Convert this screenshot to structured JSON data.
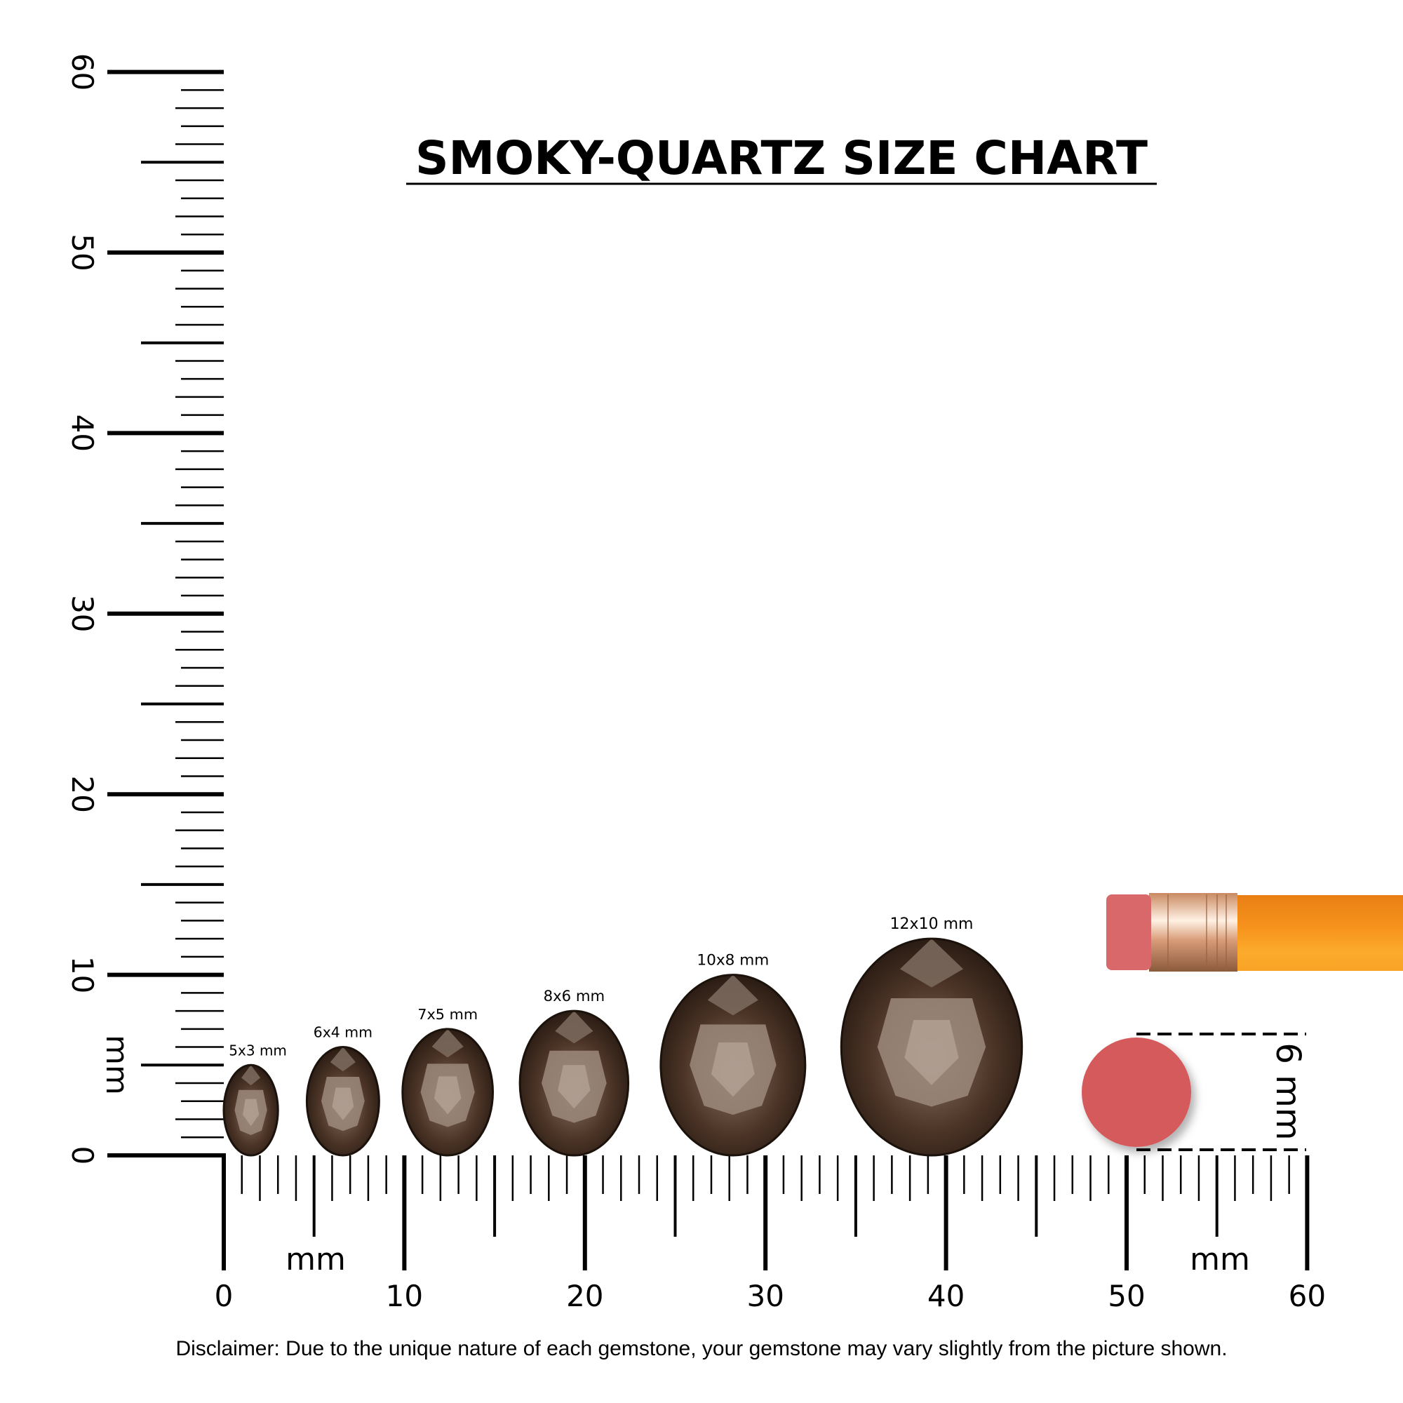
{
  "title": "SMOKY-QUARTZ SIZE CHART",
  "disclaimer": "Disclaimer: Due to the unique nature of each gemstone, your gemstone may vary slightly from the picture shown.",
  "colors": {
    "gem_dark": "#2e2018",
    "gem_mid": "#6a4d3a",
    "gem_light": "#a8968a",
    "eraser": "#d45a5c",
    "pencil": "#f7941d",
    "ferrule": "#d9a27a"
  },
  "chart_data": {
    "type": "scatter",
    "title": "SMOKY-QUARTZ SIZE CHART",
    "x_axis": {
      "unit_label": "mm",
      "range": [
        0,
        60
      ],
      "tick_labels": [
        "0",
        "10",
        "20",
        "30",
        "40",
        "50",
        "60"
      ]
    },
    "y_axis": {
      "unit_label": "mm",
      "range": [
        0,
        60
      ],
      "tick_labels": [
        "0",
        "10",
        "20",
        "30",
        "40",
        "50",
        "60"
      ]
    },
    "gems": [
      {
        "label": "5x3 mm",
        "length_mm": 5,
        "width_mm": 3,
        "center_x_mm": 1.5
      },
      {
        "label": "6x4 mm",
        "length_mm": 6,
        "width_mm": 4,
        "center_x_mm": 6.6
      },
      {
        "label": "7x5 mm",
        "length_mm": 7,
        "width_mm": 5,
        "center_x_mm": 12.4
      },
      {
        "label": "8x6 mm",
        "length_mm": 8,
        "width_mm": 6,
        "center_x_mm": 19.4
      },
      {
        "label": "10x8 mm",
        "length_mm": 10,
        "width_mm": 8,
        "center_x_mm": 28.2
      },
      {
        "label": "12x10 mm",
        "length_mm": 12,
        "width_mm": 10,
        "center_x_mm": 39.2
      }
    ],
    "reference": {
      "label": "6 mm",
      "object": "pencil eraser",
      "diameter_mm": 6
    }
  }
}
